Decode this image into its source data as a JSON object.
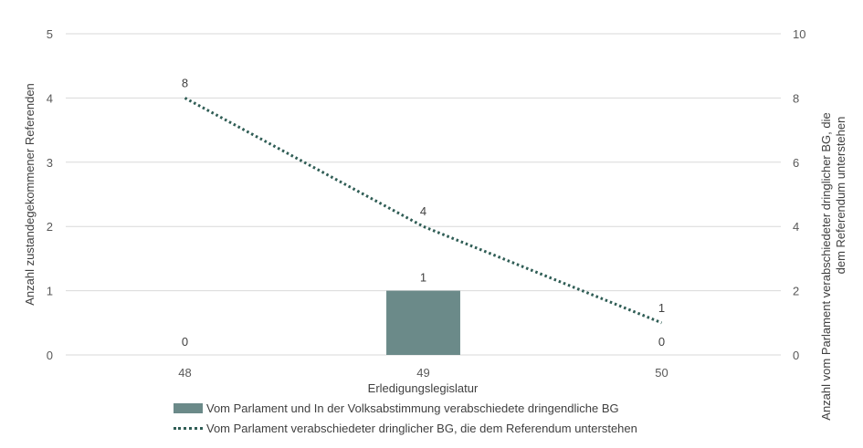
{
  "chart_data": {
    "type": "bar+line",
    "categories": [
      "48",
      "49",
      "50"
    ],
    "xlabel": "Erledigungslegislatur",
    "ylabel_left": "Anzahl zustandegekommener Referenden",
    "ylabel_right_line1": "Anzahl vom Parlament verabschiedeter dringlicher BG, die",
    "ylabel_right_line2": "dem Referendum unterstehen",
    "ylim_left": [
      0,
      5
    ],
    "ylim_right": [
      0,
      10
    ],
    "yticks_left": [
      "0",
      "1",
      "2",
      "3",
      "4",
      "5"
    ],
    "yticks_right": [
      "0",
      "2",
      "4",
      "6",
      "8",
      "10"
    ],
    "grid": true,
    "legend_position": "bottom",
    "series": [
      {
        "name": "Vom Parlament und In der Volksabstimmung verabschiedete dringendliche BG",
        "kind": "bar",
        "axis": "left",
        "values": [
          0,
          1,
          0
        ],
        "data_labels": [
          "0",
          "1",
          "0"
        ],
        "color": "#6b8a89"
      },
      {
        "name": "Vom Parlament verabschiedeter dringlicher BG, die dem Referendum unterstehen",
        "kind": "line",
        "axis": "right",
        "style": "dotted",
        "values": [
          8,
          4,
          1
        ],
        "data_labels": [
          "8",
          "4",
          "1"
        ],
        "color": "#2f5d55"
      }
    ]
  }
}
